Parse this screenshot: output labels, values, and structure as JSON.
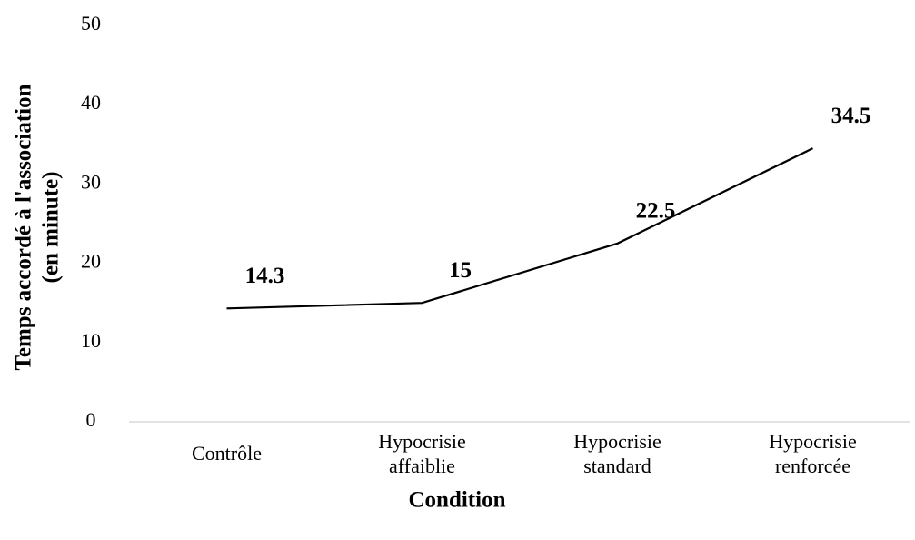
{
  "chart_data": {
    "type": "line",
    "categories": [
      "Contrôle",
      "Hypocrisie affaiblie",
      "Hypocrisie standard",
      "Hypocrisie renforcée"
    ],
    "series": [
      {
        "name": "Temps",
        "color": "#000000",
        "values": [
          14.3,
          15,
          22.5,
          34.5
        ]
      }
    ],
    "xlabel": "Condition",
    "ylabel": [
      "Temps accordé à l'association",
      "(en minute)"
    ],
    "ylim": [
      0,
      50
    ],
    "yticks": [
      0,
      10,
      20,
      30,
      40,
      50
    ],
    "grid": false
  }
}
